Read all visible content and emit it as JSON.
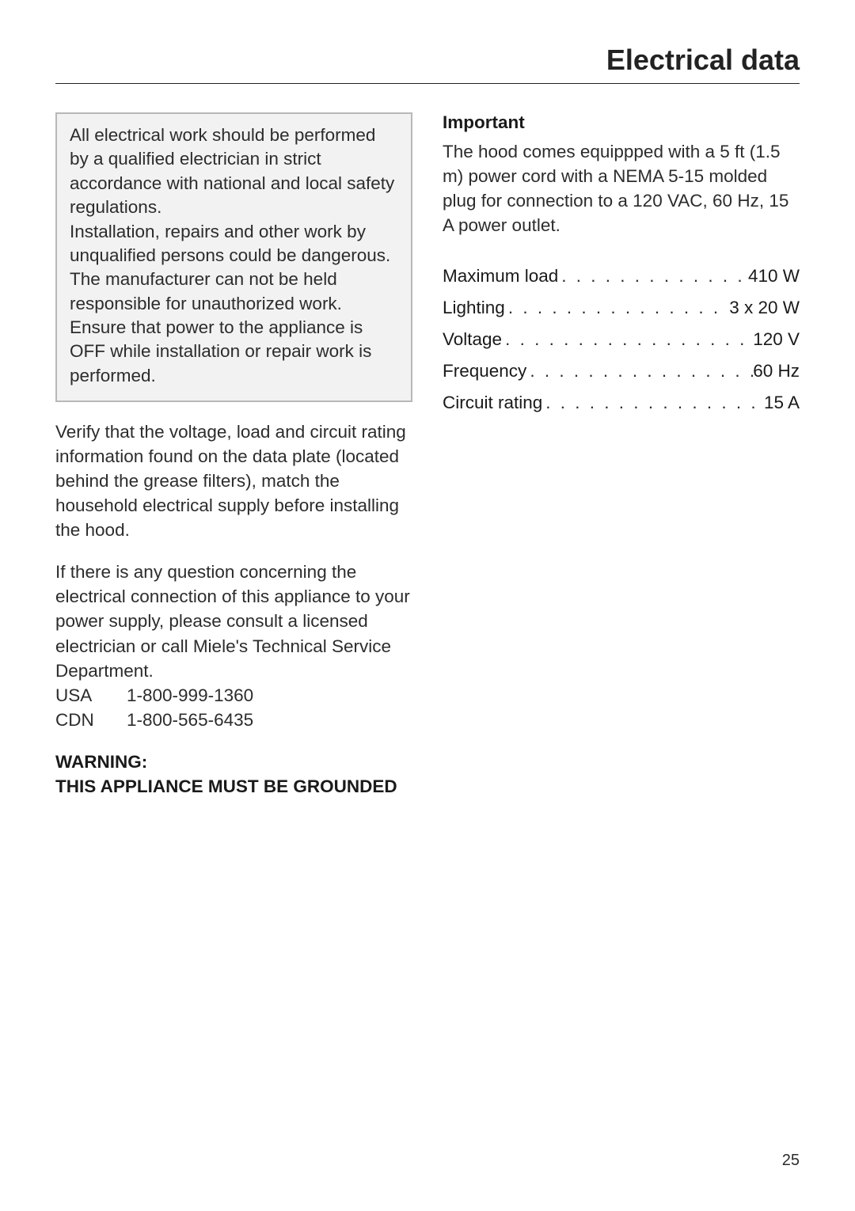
{
  "title": "Electrical data",
  "pageNumber": "25",
  "left": {
    "notice": {
      "p1": "All electrical work should be performed by a qualified electrician in strict accordance with national and local safety regulations.",
      "p2": "Installation, repairs and other work by unqualified persons could be dangerous. The manufacturer can not be held responsible for unauthorized work.",
      "p3": "Ensure that power to the appliance is OFF while installation or repair work is performed."
    },
    "verify": "Verify that the voltage, load and circuit rating information found on the data plate (located behind the grease filters), match the household electrical supply before installing the hood.",
    "consultIntro": "If there is any question concerning the electrical connection of this appliance to your power supply, please consult a licensed electrician or call Miele's Technical Service Department.",
    "phones": [
      {
        "region": "USA",
        "number": "1-800-999-1360"
      },
      {
        "region": "CDN",
        "number": "1-800-565-6435"
      }
    ],
    "warningLine1": "WARNING:",
    "warningLine2": "THIS APPLIANCE MUST BE GROUNDED"
  },
  "right": {
    "importantHeading": "Important",
    "importantText": "The hood comes equippped with a 5 ft (1.5 m) power cord with a NEMA 5-15 molded plug for connection to a 120 VAC, 60 Hz, 15 A power outlet.",
    "specs": [
      {
        "label": "Maximum  load",
        "value": "410 W"
      },
      {
        "label": "Lighting",
        "value": "3 x 20 W"
      },
      {
        "label": "Voltage",
        "value": "120 V"
      },
      {
        "label": "Frequency",
        "value": "60 Hz"
      },
      {
        "label": "Circuit rating",
        "value": "15 A"
      }
    ]
  },
  "dots": ". . . . . . . . . . . . . . . . . . . . . . . . . . . . . . . . . . . . . . . ."
}
